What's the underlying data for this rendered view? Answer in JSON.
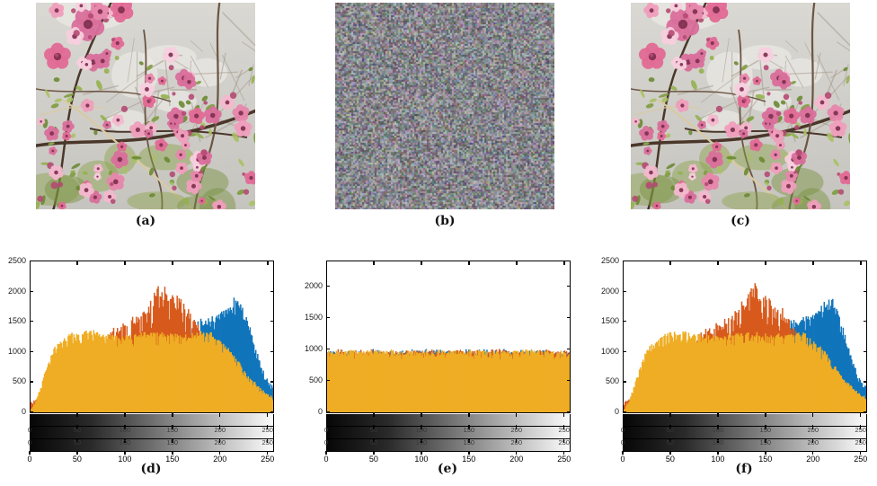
{
  "figure": {
    "panels": {
      "a": {
        "label": "(a)",
        "type": "photograph",
        "content": "peach blossom tree original image"
      },
      "b": {
        "label": "(b)",
        "type": "noise",
        "content": "encrypted cipher image"
      },
      "c": {
        "label": "(c)",
        "type": "photograph",
        "content": "decrypted peach blossom tree image"
      }
    }
  },
  "image_style": {
    "sky_top": "#dad8d3",
    "sky_bottom": "#c6c4bf",
    "patch": "#ecebe7",
    "twig": "#a59b8e",
    "branch_dark": "#4a372a",
    "branch_mid": "#6b5543",
    "dry_branch": "#d9caa2",
    "foliage": [
      "#8aa24a",
      "#75903b"
    ],
    "leaves": [
      "#7e9c3e",
      "#93b14f",
      "#6b8a33",
      "#a9c162"
    ],
    "petals": [
      "#ef9ebc",
      "#e787ac",
      "#f3b8cd",
      "#d96f9b",
      "#f7cfdd",
      "#e26a95"
    ],
    "flower_center": "#7c2d4c",
    "bud": "#b44a72",
    "seed_photo": 7,
    "blossom_count": 95,
    "leaf_count": 70,
    "twig_count": 34,
    "foliage_count": 9,
    "noise_seed": 99,
    "noise_base": 135,
    "noise_range": 44,
    "noise_cell": 2
  },
  "axis_style": {
    "tick_color": "#000000",
    "ylabel_color": "#1a1a1a",
    "strip_label_color": "#383838",
    "xlabel_color": "#000000"
  },
  "chart_data": [
    {
      "id": "d",
      "label": "(d)",
      "type": "bar",
      "subtype": "rgb-histogram",
      "title": "",
      "xlabel": "",
      "ylabel": "",
      "x_range": [
        0,
        255
      ],
      "ylim": [
        0,
        2500
      ],
      "yticks": [
        0,
        500,
        1000,
        1500,
        2000,
        2500
      ],
      "xticks": [
        0,
        50,
        100,
        150,
        200,
        250
      ],
      "strip_axis_ticks": [
        0,
        50,
        100,
        150,
        200,
        250
      ],
      "gradient_strips": 3,
      "seed": 11,
      "series": [
        {
          "name": "blue-channel",
          "color": "#1175bb",
          "jr": 0.045,
          "ja": 20,
          "dp": 0.15,
          "df": 0.9,
          "points": [
            [
              0,
              90
            ],
            [
              30,
              380
            ],
            [
              70,
              640
            ],
            [
              110,
              850
            ],
            [
              140,
              1020
            ],
            [
              152,
              1130
            ],
            [
              160,
              1250
            ],
            [
              168,
              1380
            ],
            [
              175,
              1450
            ],
            [
              182,
              1500
            ],
            [
              190,
              1530
            ],
            [
              196,
              1570
            ],
            [
              202,
              1630
            ],
            [
              208,
              1710
            ],
            [
              213,
              1810
            ],
            [
              217,
              1845
            ],
            [
              221,
              1770
            ],
            [
              225,
              1630
            ],
            [
              229,
              1460
            ],
            [
              233,
              1230
            ],
            [
              237,
              1010
            ],
            [
              241,
              830
            ],
            [
              245,
              660
            ],
            [
              250,
              490
            ],
            [
              255,
              430
            ]
          ]
        },
        {
          "name": "red-channel",
          "color": "#d75a1c",
          "jr": 0.06,
          "ja": 25,
          "dp": 0.22,
          "df": 0.84,
          "points": [
            [
              0,
              160
            ],
            [
              6,
              220
            ],
            [
              15,
              380
            ],
            [
              30,
              620
            ],
            [
              50,
              820
            ],
            [
              65,
              1000
            ],
            [
              75,
              1150
            ],
            [
              85,
              1290
            ],
            [
              95,
              1390
            ],
            [
              105,
              1480
            ],
            [
              112,
              1560
            ],
            [
              120,
              1660
            ],
            [
              126,
              1760
            ],
            [
              131,
              1900
            ],
            [
              136,
              2020
            ],
            [
              140,
              1980
            ],
            [
              144,
              1930
            ],
            [
              148,
              1870
            ],
            [
              153,
              1820
            ],
            [
              158,
              1790
            ],
            [
              163,
              1700
            ],
            [
              168,
              1600
            ],
            [
              172,
              1500
            ],
            [
              176,
              1410
            ],
            [
              181,
              1300
            ],
            [
              186,
              1160
            ],
            [
              192,
              1000
            ],
            [
              200,
              820
            ],
            [
              210,
              620
            ],
            [
              220,
              460
            ],
            [
              230,
              340
            ],
            [
              240,
              240
            ],
            [
              250,
              170
            ],
            [
              255,
              140
            ]
          ]
        },
        {
          "name": "green-channel",
          "color": "#efad24",
          "jr": 0.035,
          "ja": 18,
          "dp": 0.2,
          "df": 0.9,
          "points": [
            [
              0,
              60
            ],
            [
              4,
              150
            ],
            [
              8,
              320
            ],
            [
              14,
              620
            ],
            [
              20,
              900
            ],
            [
              28,
              1120
            ],
            [
              38,
              1240
            ],
            [
              48,
              1290
            ],
            [
              58,
              1320
            ],
            [
              70,
              1300
            ],
            [
              80,
              1265
            ],
            [
              90,
              1240
            ],
            [
              100,
              1235
            ],
            [
              110,
              1255
            ],
            [
              120,
              1275
            ],
            [
              130,
              1295
            ],
            [
              140,
              1290
            ],
            [
              150,
              1275
            ],
            [
              158,
              1260
            ],
            [
              166,
              1255
            ],
            [
              174,
              1270
            ],
            [
              182,
              1295
            ],
            [
              190,
              1285
            ],
            [
              196,
              1220
            ],
            [
              202,
              1130
            ],
            [
              208,
              1030
            ],
            [
              214,
              930
            ],
            [
              220,
              800
            ],
            [
              226,
              660
            ],
            [
              232,
              545
            ],
            [
              238,
              440
            ],
            [
              244,
              360
            ],
            [
              250,
              290
            ],
            [
              255,
              240
            ]
          ]
        }
      ]
    },
    {
      "id": "e",
      "label": "(e)",
      "type": "bar",
      "subtype": "rgb-histogram",
      "title": "",
      "xlabel": "",
      "ylabel": "",
      "x_range": [
        0,
        255
      ],
      "ylim": [
        0,
        2400
      ],
      "yticks": [
        0,
        500,
        1000,
        1500,
        2000
      ],
      "xticks": [
        0,
        50,
        100,
        150,
        200,
        250
      ],
      "strip_axis_ticks": [
        0,
        50,
        100,
        150,
        200,
        250
      ],
      "gradient_strips": 3,
      "seed": 17,
      "series": [
        {
          "name": "blue-channel",
          "color": "#1175bb",
          "jr": 0.05,
          "ja": 18,
          "dp": 0.1,
          "df": 0.95,
          "points": [
            [
              0,
              945
            ],
            [
              255,
              945
            ]
          ]
        },
        {
          "name": "red-channel",
          "color": "#d75a1c",
          "jr": 0.05,
          "ja": 18,
          "dp": 0.1,
          "df": 0.95,
          "points": [
            [
              0,
              945
            ],
            [
              255,
              945
            ]
          ]
        },
        {
          "name": "green-channel",
          "color": "#efad24",
          "jr": 0.045,
          "ja": 15,
          "dp": 0.2,
          "df": 0.93,
          "points": [
            [
              0,
              950
            ],
            [
              255,
              950
            ]
          ]
        }
      ]
    },
    {
      "id": "f",
      "label": "(f)",
      "type": "bar",
      "subtype": "rgb-histogram",
      "title": "",
      "xlabel": "",
      "ylabel": "",
      "x_range": [
        0,
        255
      ],
      "ylim": [
        0,
        2500
      ],
      "yticks": [
        0,
        500,
        1000,
        1500,
        2000,
        2500
      ],
      "xticks": [
        0,
        50,
        100,
        150,
        200,
        250
      ],
      "strip_axis_ticks": [
        0,
        50,
        100,
        150,
        200,
        250
      ],
      "gradient_strips": 3,
      "seed": 23,
      "series": [
        {
          "name": "blue-channel",
          "color": "#1175bb",
          "jr": 0.045,
          "ja": 20,
          "dp": 0.15,
          "df": 0.9,
          "points": [
            [
              0,
              90
            ],
            [
              30,
              380
            ],
            [
              70,
              640
            ],
            [
              110,
              850
            ],
            [
              140,
              1020
            ],
            [
              152,
              1130
            ],
            [
              160,
              1250
            ],
            [
              168,
              1380
            ],
            [
              175,
              1450
            ],
            [
              182,
              1500
            ],
            [
              190,
              1530
            ],
            [
              196,
              1570
            ],
            [
              202,
              1630
            ],
            [
              208,
              1710
            ],
            [
              213,
              1810
            ],
            [
              217,
              1845
            ],
            [
              221,
              1770
            ],
            [
              225,
              1630
            ],
            [
              229,
              1460
            ],
            [
              233,
              1230
            ],
            [
              237,
              1010
            ],
            [
              241,
              830
            ],
            [
              245,
              660
            ],
            [
              250,
              490
            ],
            [
              255,
              430
            ]
          ]
        },
        {
          "name": "red-channel",
          "color": "#d75a1c",
          "jr": 0.06,
          "ja": 25,
          "dp": 0.22,
          "df": 0.84,
          "points": [
            [
              0,
              160
            ],
            [
              6,
              220
            ],
            [
              15,
              380
            ],
            [
              30,
              620
            ],
            [
              50,
              820
            ],
            [
              65,
              1000
            ],
            [
              75,
              1150
            ],
            [
              85,
              1290
            ],
            [
              95,
              1390
            ],
            [
              105,
              1480
            ],
            [
              112,
              1560
            ],
            [
              120,
              1660
            ],
            [
              126,
              1760
            ],
            [
              131,
              1900
            ],
            [
              136,
              2020
            ],
            [
              140,
              1980
            ],
            [
              144,
              1930
            ],
            [
              148,
              1870
            ],
            [
              153,
              1820
            ],
            [
              158,
              1790
            ],
            [
              163,
              1700
            ],
            [
              168,
              1600
            ],
            [
              172,
              1500
            ],
            [
              176,
              1410
            ],
            [
              181,
              1300
            ],
            [
              186,
              1160
            ],
            [
              192,
              1000
            ],
            [
              200,
              820
            ],
            [
              210,
              620
            ],
            [
              220,
              460
            ],
            [
              230,
              340
            ],
            [
              240,
              240
            ],
            [
              250,
              170
            ],
            [
              255,
              140
            ]
          ]
        },
        {
          "name": "green-channel",
          "color": "#efad24",
          "jr": 0.035,
          "ja": 18,
          "dp": 0.2,
          "df": 0.9,
          "points": [
            [
              0,
              60
            ],
            [
              4,
              150
            ],
            [
              8,
              320
            ],
            [
              14,
              620
            ],
            [
              20,
              900
            ],
            [
              28,
              1120
            ],
            [
              38,
              1240
            ],
            [
              48,
              1290
            ],
            [
              58,
              1320
            ],
            [
              70,
              1300
            ],
            [
              80,
              1265
            ],
            [
              90,
              1240
            ],
            [
              100,
              1235
            ],
            [
              110,
              1255
            ],
            [
              120,
              1275
            ],
            [
              130,
              1295
            ],
            [
              140,
              1290
            ],
            [
              150,
              1275
            ],
            [
              158,
              1260
            ],
            [
              166,
              1255
            ],
            [
              174,
              1270
            ],
            [
              182,
              1295
            ],
            [
              190,
              1285
            ],
            [
              196,
              1220
            ],
            [
              202,
              1130
            ],
            [
              208,
              1030
            ],
            [
              214,
              930
            ],
            [
              220,
              800
            ],
            [
              226,
              660
            ],
            [
              232,
              545
            ],
            [
              238,
              440
            ],
            [
              244,
              360
            ],
            [
              250,
              290
            ],
            [
              255,
              240
            ]
          ]
        }
      ]
    }
  ]
}
